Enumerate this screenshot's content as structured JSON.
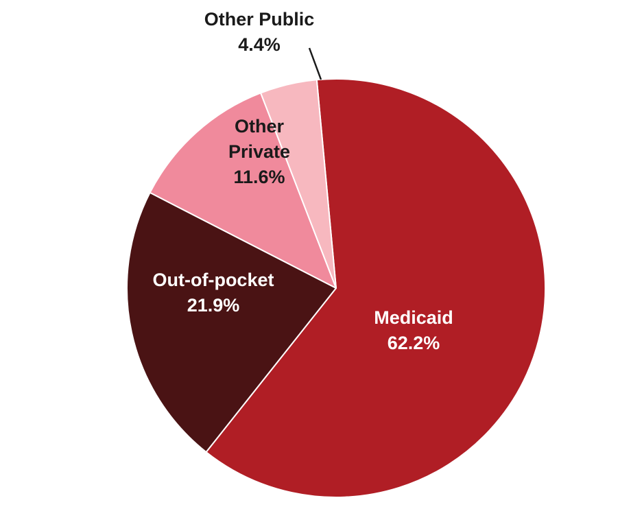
{
  "chart_data": {
    "type": "pie",
    "title": "",
    "slices": [
      {
        "label_lines": [
          "Medicaid"
        ],
        "value": 62.2,
        "value_label": "62.2%",
        "color": "#B01E25",
        "label_color": "#FFFFFF"
      },
      {
        "label_lines": [
          "Out-of-pocket"
        ],
        "value": 21.9,
        "value_label": "21.9%",
        "color": "#4A1314",
        "label_color": "#FFFFFF"
      },
      {
        "label_lines": [
          "Other",
          "Private"
        ],
        "value": 11.6,
        "value_label": "11.6%",
        "color": "#F08A9C",
        "label_color": "#1A1A1A"
      },
      {
        "label_lines": [
          "Other Public"
        ],
        "value": 4.4,
        "value_label": "4.4%",
        "color": "#F7B8BF",
        "label_color": "#1A1A1A"
      }
    ],
    "legend": "none"
  }
}
